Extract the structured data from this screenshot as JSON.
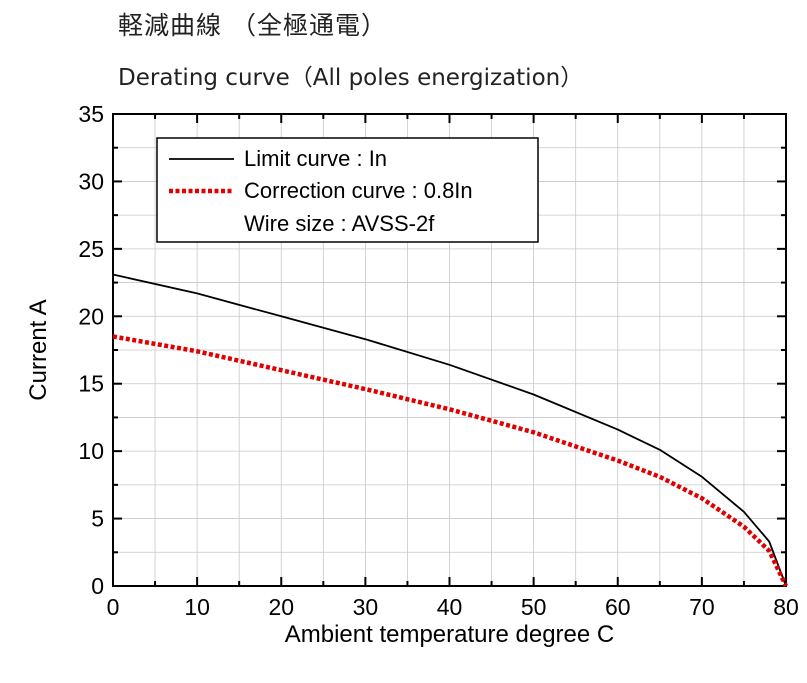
{
  "header": {
    "title_jp": "軽減曲線 （全極通電）",
    "title_en": "Derating curve（All poles energization）"
  },
  "chart_data": {
    "type": "line",
    "title": "Derating curve（All poles energization）",
    "xlabel": "Ambient temperature  degree C",
    "ylabel": "Current  A",
    "xlim": [
      0,
      80
    ],
    "ylim": [
      0,
      35
    ],
    "xticks": [
      0,
      10,
      20,
      30,
      40,
      50,
      60,
      70,
      80
    ],
    "yticks": [
      0,
      5,
      10,
      15,
      20,
      25,
      30,
      35
    ],
    "grid": true,
    "legend_position": "top-left",
    "legend_note": "Wire size : AVSS-2f",
    "series": [
      {
        "name": "Limit curve : In",
        "style": "solid",
        "color": "#000000",
        "x": [
          0,
          10,
          20,
          30,
          40,
          50,
          60,
          65,
          70,
          75,
          78,
          80
        ],
        "y": [
          23.1,
          21.7,
          20.0,
          18.3,
          16.4,
          14.2,
          11.6,
          10.1,
          8.1,
          5.5,
          3.3,
          0
        ]
      },
      {
        "name": "Correction curve : 0.8In",
        "style": "dotted",
        "color": "#e00000",
        "x": [
          0,
          10,
          20,
          30,
          40,
          50,
          60,
          65,
          70,
          75,
          78,
          80
        ],
        "y": [
          18.5,
          17.4,
          16.0,
          14.6,
          13.1,
          11.4,
          9.3,
          8.1,
          6.5,
          4.4,
          2.6,
          0
        ]
      }
    ]
  }
}
